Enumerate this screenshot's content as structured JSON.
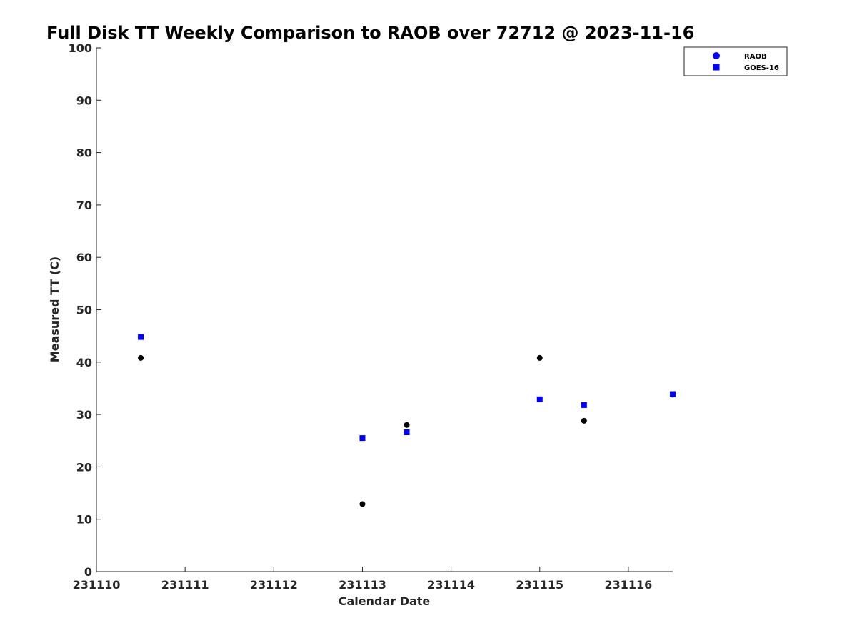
{
  "chart_data": {
    "type": "scatter",
    "title": "Full Disk TT Weekly Comparison to RAOB over 72712 @ 2023-11-16",
    "xlabel": "Calendar Date",
    "ylabel": "Measured TT (C)",
    "xlim": [
      "231110",
      "231116.5"
    ],
    "ylim": [
      0,
      100
    ],
    "x_ticks": [
      "231110",
      "231111",
      "231112",
      "231113",
      "231114",
      "231115",
      "231116"
    ],
    "y_ticks": [
      "0",
      "10",
      "20",
      "30",
      "40",
      "50",
      "60",
      "70",
      "80",
      "90",
      "100"
    ],
    "grid": false,
    "legend_position": "top-right",
    "legend": [
      "RAOB",
      "GOES-16"
    ],
    "series": [
      {
        "name": "RAOB",
        "marker": "circle",
        "color": "#000000",
        "legend_color": "#0000ff",
        "x": [
          "2023-11-10 12:00",
          "2023-11-13 00:00",
          "2023-11-13 12:00",
          "2023-11-15 00:00",
          "2023-11-15 12:00",
          "2023-11-16 12:00"
        ],
        "values": [
          40.8,
          12.9,
          28.0,
          40.8,
          28.8,
          33.8
        ]
      },
      {
        "name": "GOES-16",
        "marker": "square",
        "color": "#0000ff",
        "legend_color": "#0000ff",
        "x": [
          "2023-11-10 12:00",
          "2023-11-13 00:00",
          "2023-11-13 12:00",
          "2023-11-15 00:00",
          "2023-11-15 12:00",
          "2023-11-16 12:00"
        ],
        "values": [
          44.8,
          25.5,
          26.6,
          32.9,
          31.8,
          33.9
        ]
      }
    ]
  }
}
